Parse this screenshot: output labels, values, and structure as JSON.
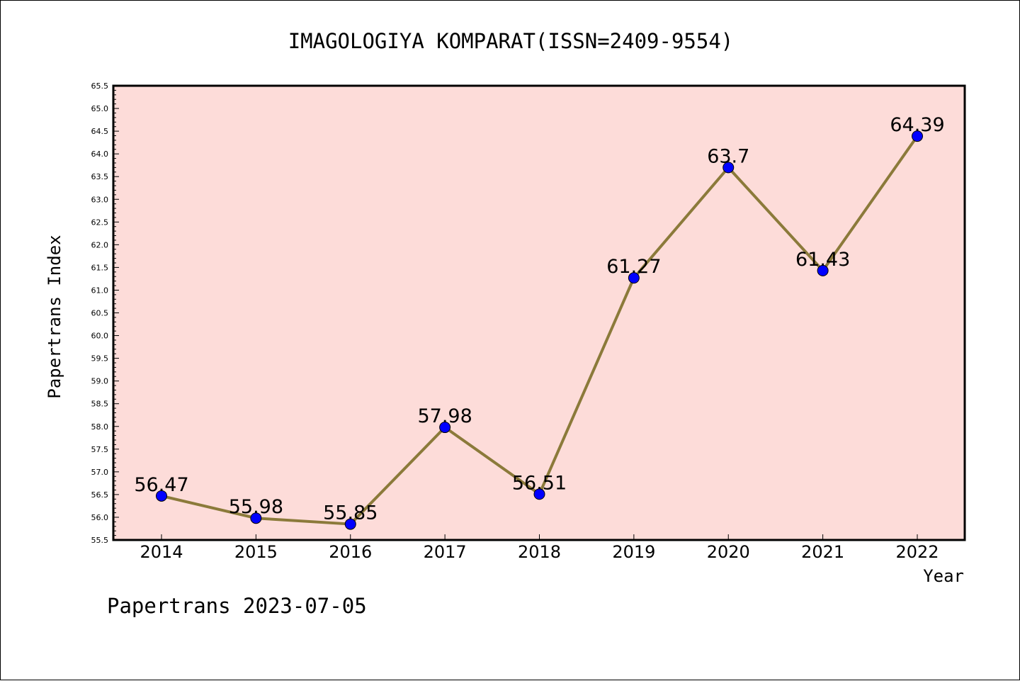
{
  "chart_data": {
    "type": "line",
    "title": "IMAGOLOGIYA KOMPARAT(ISSN=2409-9554)",
    "xlabel": "Year",
    "ylabel": "Papertrans Index",
    "footer": "Papertrans 2023-07-05",
    "categories": [
      "2014",
      "2015",
      "2016",
      "2017",
      "2018",
      "2019",
      "2020",
      "2021",
      "2022"
    ],
    "values": [
      56.47,
      55.98,
      55.85,
      57.98,
      56.51,
      61.27,
      63.7,
      61.43,
      64.39
    ],
    "data_labels": [
      "56.47",
      "55.98",
      "55.85",
      "57.98",
      "56.51",
      "61.27",
      "63.7",
      "61.43",
      "64.39"
    ],
    "ylim": [
      55.5,
      65.5
    ],
    "yticks": [
      "55.5",
      "56.0",
      "56.5",
      "57.0",
      "57.5",
      "58.0",
      "58.5",
      "59.0",
      "59.5",
      "60.0",
      "60.5",
      "61.0",
      "61.5",
      "62.0",
      "62.5",
      "63.0",
      "63.5",
      "64.0",
      "64.5",
      "65.0",
      "65.5"
    ],
    "grid": false,
    "colors": {
      "plot_background": "#fddcd9",
      "line": "#8b7a3a",
      "marker": "#0000ff"
    }
  }
}
